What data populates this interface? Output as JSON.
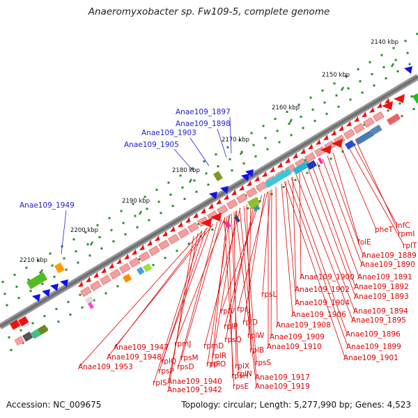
{
  "title": "Anaeromyxobacter sp. Fw109-5, complete genome",
  "footer": {
    "accession": "Accession: NC_009675",
    "topology": "Topology: circular; Length: 5,277,990 bp; Genes: 4,523"
  },
  "ticks": [
    "2140 kbp",
    "2150 kbp",
    "2160 kbp",
    "2170 kbp",
    "2180 kbp",
    "2190 kbp",
    "2200 kbp",
    "2210 kbp"
  ],
  "blue_labels": [
    "Anae109_1897",
    "Anae109_1898",
    "Anae109_1903",
    "Anae109_1905",
    "Anae109_1949"
  ],
  "red_labels": [
    "infC",
    "rpmI",
    "rplT",
    "pheT",
    "folE",
    "Anae109_1889",
    "Anae109_1890",
    "Anae109_1891",
    "Anae109_1892",
    "Anae109_1893",
    "Anae109_1900",
    "Anae109_1902",
    "rpsL",
    "Anae109_1904",
    "Anae109_1894",
    "Anae109_1906",
    "Anae109_1895",
    "rpsJ",
    "rplV",
    "rplD",
    "Anae109_1908",
    "Anae109_1896",
    "rplP",
    "Anae109_1909",
    "rpsQ",
    "rplW",
    "Anae109_1899",
    "Anae109_1910",
    "rplB",
    "rpmD",
    "rplR",
    "rplF",
    "rpmJ",
    "rpsS",
    "Anae109_1901",
    "rpsM",
    "rplX",
    "rplO",
    "rpsD",
    "rplN",
    "Anae109_1917",
    "rpsH",
    "rpsE",
    "Anae109_1919",
    "Anae109_1947",
    "Anae109_1948",
    "rplQ",
    "rpsP",
    "Anae109_1953",
    "rplS",
    "Anae109_1940",
    "Anae109_1942"
  ]
}
